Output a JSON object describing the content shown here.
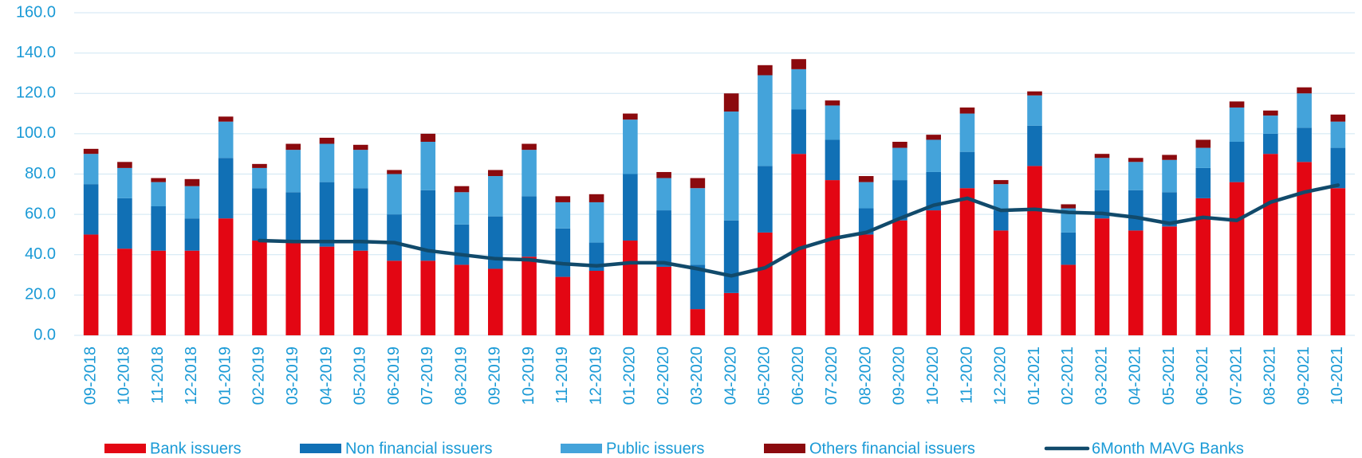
{
  "chart_data": {
    "type": "bar",
    "stacked": true,
    "categories": [
      "09-2018",
      "10-2018",
      "11-2018",
      "12-2018",
      "01-2019",
      "02-2019",
      "03-2019",
      "04-2019",
      "05-2019",
      "06-2019",
      "07-2019",
      "08-2019",
      "09-2019",
      "10-2019",
      "11-2019",
      "12-2019",
      "01-2020",
      "02-2020",
      "03-2020",
      "04-2020",
      "05-2020",
      "06-2020",
      "07-2020",
      "08-2020",
      "09-2020",
      "10-2020",
      "11-2020",
      "12-2020",
      "01-2021",
      "02-2021",
      "03-2021",
      "04-2021",
      "05-2021",
      "06-2021",
      "07-2021",
      "08-2021",
      "09-2021",
      "10-2021"
    ],
    "series": [
      {
        "name": "Bank issuers",
        "type": "bar",
        "color": "#e30613",
        "values": [
          50,
          43,
          42,
          42,
          58,
          47,
          46,
          44,
          42,
          37,
          37,
          35,
          33,
          39,
          29,
          32,
          47,
          34,
          13,
          21,
          51,
          90,
          77,
          50,
          57,
          62,
          73,
          52,
          84,
          35,
          58,
          52,
          54,
          68,
          76,
          90,
          86,
          73
        ]
      },
      {
        "name": "Non financial issuers",
        "type": "bar",
        "color": "#1170b5",
        "values": [
          25,
          25,
          22,
          16,
          30,
          26,
          25,
          32,
          31,
          23,
          35,
          20,
          26,
          30,
          24,
          14,
          33,
          28,
          22,
          36,
          33,
          22,
          20,
          13,
          20,
          19,
          18,
          10,
          20,
          16,
          14,
          20,
          17,
          15,
          20,
          10,
          17,
          20
        ]
      },
      {
        "name": "Public issuers",
        "type": "bar",
        "color": "#44a3da",
        "values": [
          15,
          15,
          12,
          16,
          18,
          10,
          21,
          19,
          19,
          20,
          24,
          16,
          20,
          23,
          13,
          20,
          27,
          16,
          38,
          54,
          45,
          20,
          17,
          13,
          16,
          16,
          19,
          13,
          15,
          12,
          16,
          14,
          16,
          10,
          17,
          9,
          17,
          13
        ]
      },
      {
        "name": "Others financial issuers",
        "type": "bar",
        "color": "#8b0a0e",
        "values": [
          2.5,
          3,
          2,
          3.5,
          2.5,
          2,
          3,
          3,
          2.5,
          2,
          4,
          3,
          3,
          3,
          3,
          4,
          3,
          3,
          5,
          9,
          5,
          5,
          2.5,
          3,
          3,
          2.5,
          3,
          2,
          2,
          2,
          2,
          2,
          2.5,
          4,
          3,
          2.5,
          3,
          3.5
        ]
      },
      {
        "name": "6Month MAVG Banks",
        "type": "line",
        "color": "#114a6b",
        "values": [
          null,
          null,
          null,
          null,
          null,
          47,
          46.5,
          46.5,
          46.5,
          46,
          42,
          40,
          38,
          37.5,
          35.5,
          34.5,
          36,
          36,
          33,
          29.5,
          33.5,
          43,
          48,
          51,
          58,
          64.5,
          68,
          62,
          62.5,
          61,
          60.5,
          58.5,
          55.5,
          58.5,
          57,
          66,
          71,
          74.5
        ]
      }
    ],
    "ylim": [
      0,
      160
    ],
    "yticks": [
      {
        "value": 0,
        "label": "0.0"
      },
      {
        "value": 20,
        "label": "20.0"
      },
      {
        "value": 40,
        "label": "40.0"
      },
      {
        "value": 60,
        "label": "60.0"
      },
      {
        "value": 80,
        "label": "80.0"
      },
      {
        "value": 100,
        "label": "100.0"
      },
      {
        "value": 120,
        "label": "120.0"
      },
      {
        "value": 140,
        "label": "140.0"
      },
      {
        "value": 160,
        "label": "160.0"
      }
    ],
    "grid": true,
    "legend": "bottom"
  }
}
